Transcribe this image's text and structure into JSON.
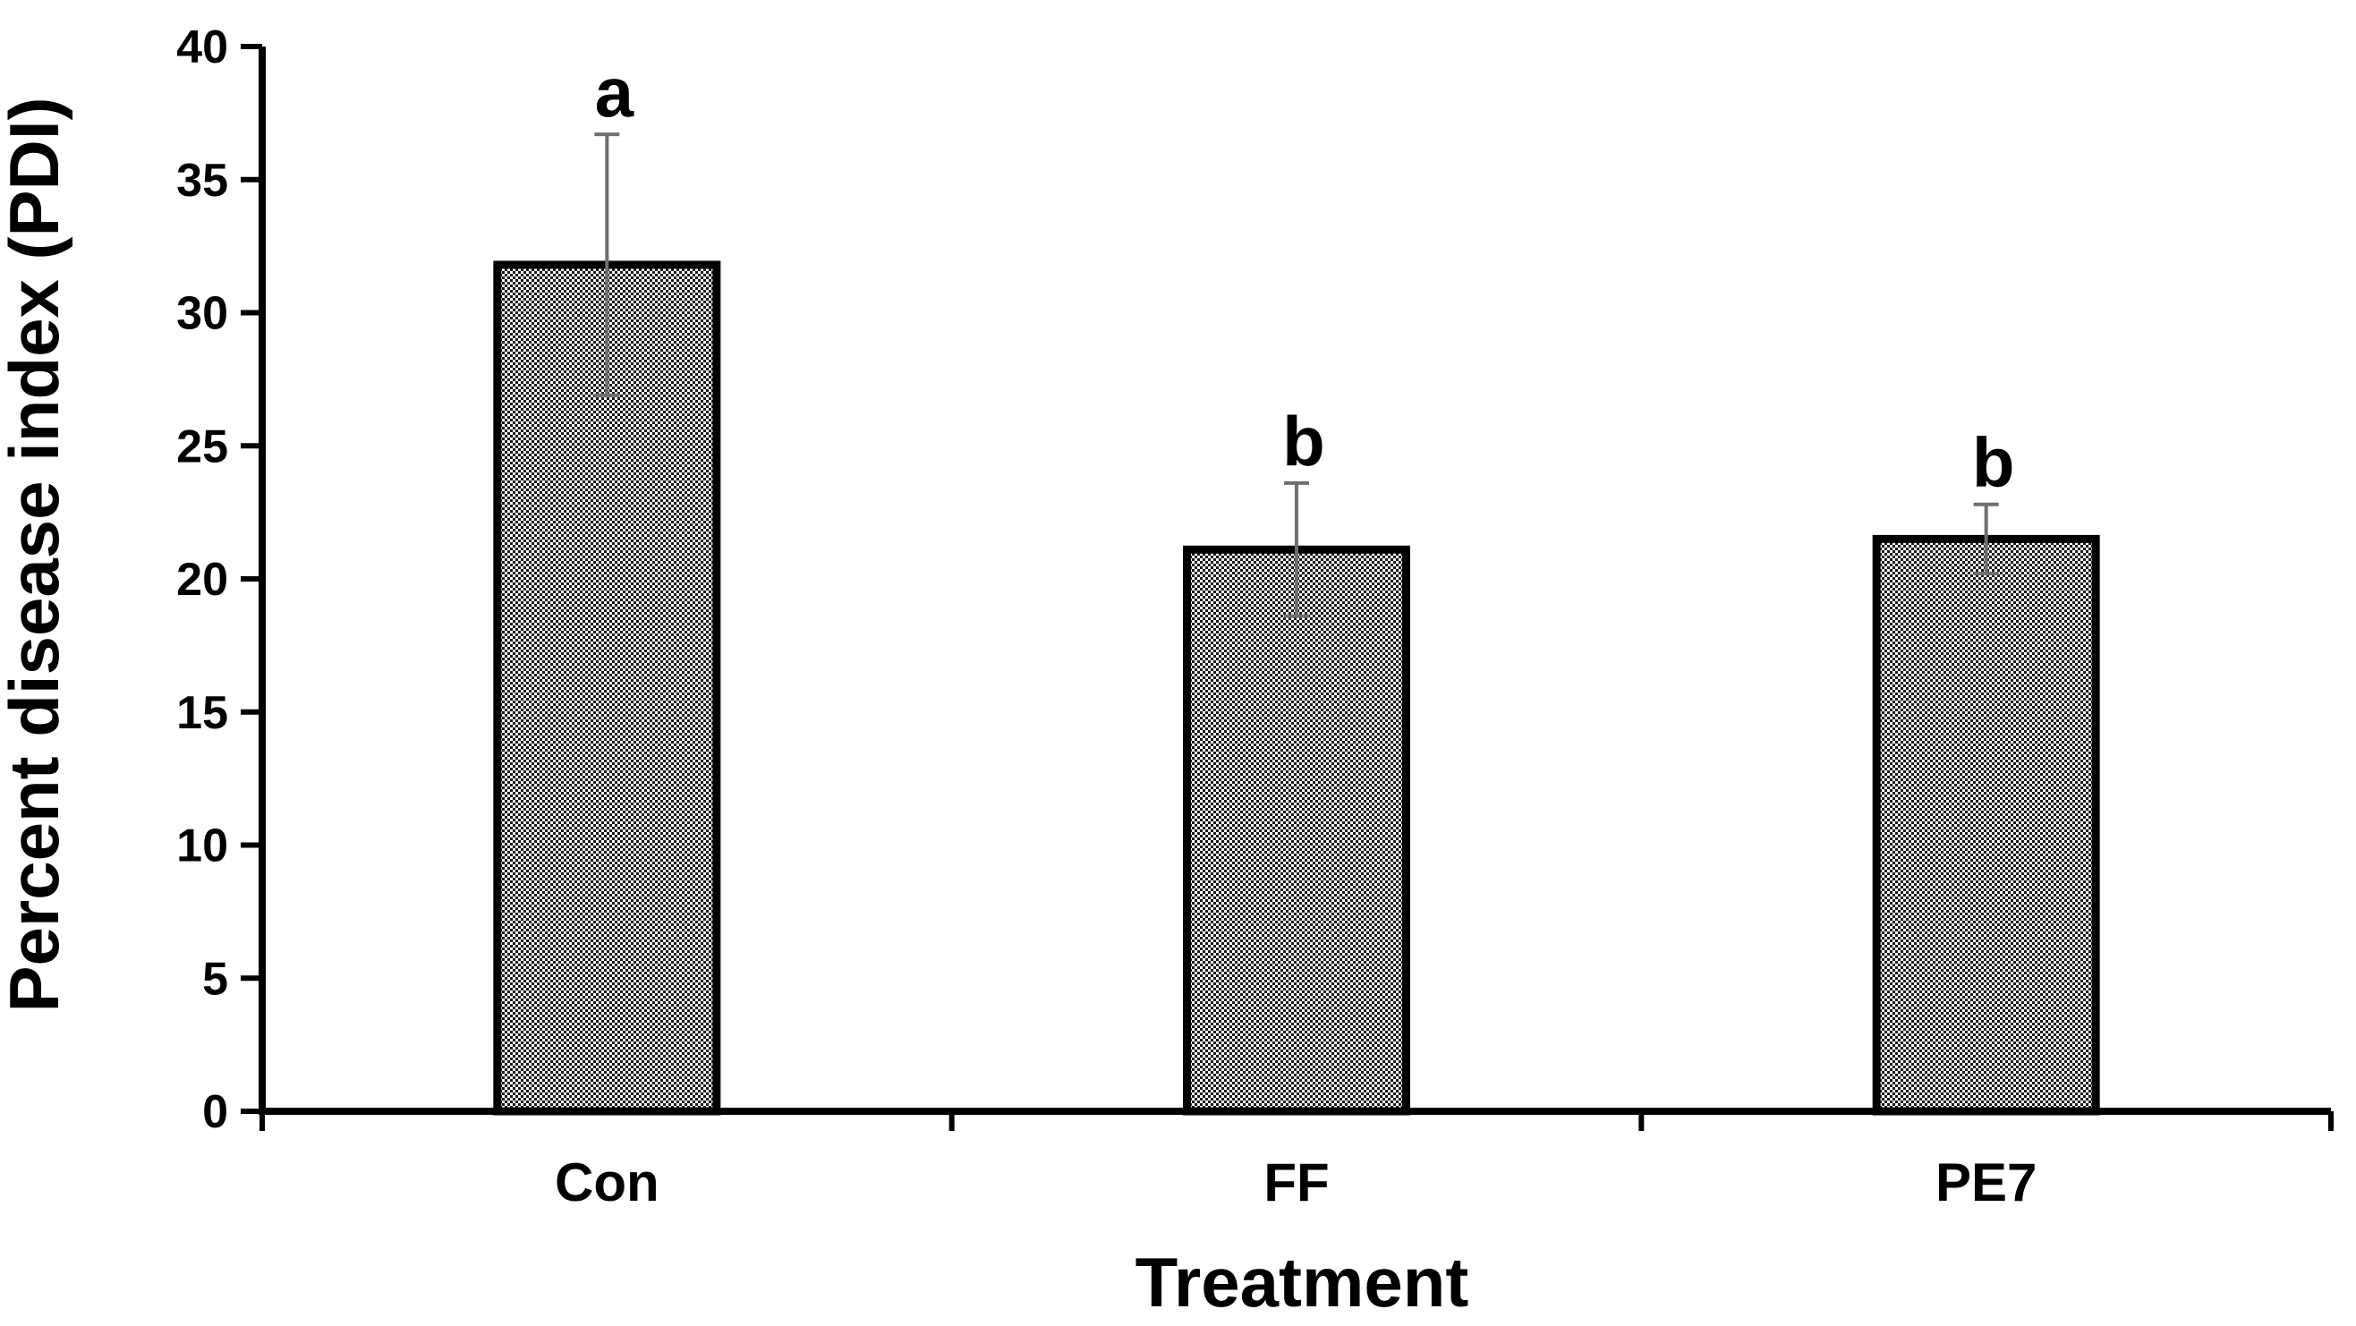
{
  "chart_data": {
    "type": "bar",
    "title": "",
    "xlabel": "Treatment",
    "ylabel": "Percent disease index (PDI)",
    "categories": [
      "Con",
      "FF",
      "PE7"
    ],
    "values": [
      31.8,
      21.1,
      21.5
    ],
    "errors": [
      4.9,
      2.5,
      1.3
    ],
    "significance": [
      "a",
      "b",
      "b"
    ],
    "ylim": [
      0,
      40
    ],
    "yticks": [
      0,
      5,
      10,
      15,
      20,
      25,
      30,
      35,
      40
    ],
    "bar_fill": "#8a8a8a",
    "bar_edge": "#000000",
    "error_color": "#6e6e6e",
    "grid": false
  }
}
